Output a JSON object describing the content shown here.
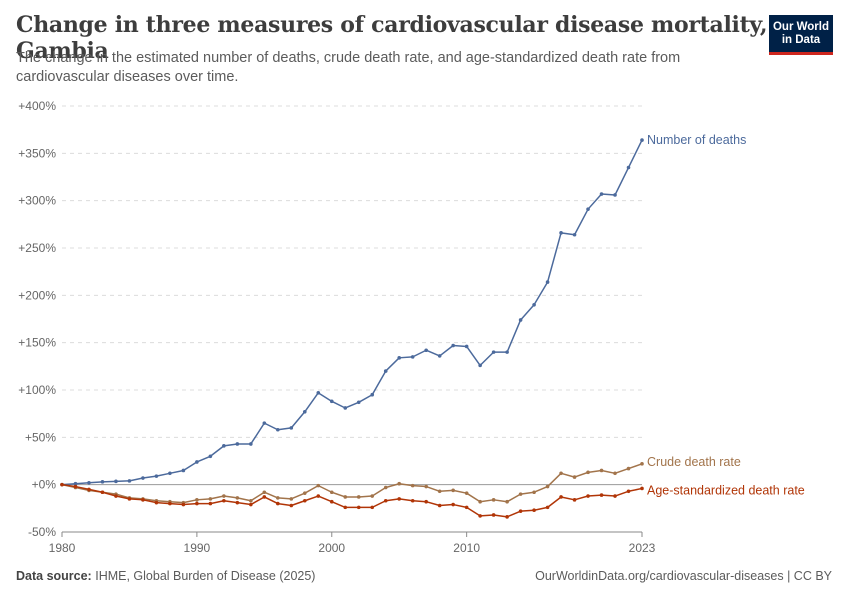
{
  "header": {
    "title": "Change in three measures of cardiovascular disease mortality, Gambia",
    "subtitle": "The change in the estimated number of deaths, crude death rate, and age-standardized death rate from cardiovascular diseases over time."
  },
  "logo": {
    "line1": "Our World",
    "line2": "in Data",
    "bg_color": "#002147",
    "accent_color": "#ce261e"
  },
  "footer": {
    "source_label": "Data source:",
    "source_text": "IHME, Global Burden of Disease (2025)",
    "url_license": "OurWorldinData.org/cardiovascular-diseases | CC BY"
  },
  "chart_data": {
    "type": "line",
    "title": "Change in three measures of cardiovascular disease mortality, Gambia",
    "x": [
      1980,
      1981,
      1982,
      1983,
      1984,
      1985,
      1986,
      1987,
      1988,
      1989,
      1990,
      1991,
      1992,
      1993,
      1994,
      1995,
      1996,
      1997,
      1998,
      1999,
      2000,
      2001,
      2002,
      2003,
      2004,
      2005,
      2006,
      2007,
      2008,
      2009,
      2010,
      2011,
      2012,
      2013,
      2014,
      2015,
      2016,
      2017,
      2018,
      2019,
      2020,
      2021,
      2022,
      2023
    ],
    "x_ticks": [
      1980,
      1990,
      2000,
      2010,
      2023
    ],
    "y_ticks": [
      -50,
      0,
      50,
      100,
      150,
      200,
      250,
      300,
      350,
      400
    ],
    "y_tick_labels": [
      "-50%",
      "+0%",
      "+50%",
      "+100%",
      "+150%",
      "+200%",
      "+250%",
      "+300%",
      "+350%",
      "+400%"
    ],
    "ylim": [
      -50,
      400
    ],
    "xlim": [
      1980,
      2023
    ],
    "grid": "horizontal dashed",
    "legend": "line-end labels",
    "series": [
      {
        "name": "Number of deaths",
        "color": "#4c6a9c",
        "values": [
          0,
          1,
          2,
          3,
          3.5,
          4,
          7,
          9,
          12,
          15,
          24,
          30,
          41,
          43,
          43,
          65,
          58,
          60,
          77,
          97,
          88,
          81,
          87,
          95,
          120,
          134,
          135,
          142,
          136,
          147,
          146,
          126,
          140,
          140,
          174,
          190,
          214,
          266,
          264,
          291,
          307,
          306,
          335,
          364
        ]
      },
      {
        "name": "Crude death rate",
        "color": "#a2744b",
        "values": [
          0,
          -3,
          -6,
          -8,
          -10,
          -14,
          -15,
          -17,
          -18,
          -19,
          -16,
          -15,
          -12,
          -14,
          -17,
          -8,
          -14,
          -15,
          -9,
          -1,
          -8,
          -13,
          -13,
          -12,
          -3,
          1,
          -1,
          -2,
          -7,
          -6,
          -9,
          -18,
          -16,
          -18,
          -10,
          -8,
          -2,
          12,
          8,
          13,
          15,
          12,
          17,
          22
        ]
      },
      {
        "name": "Age-standardized death rate",
        "color": "#b13507",
        "values": [
          0,
          -2,
          -5,
          -8,
          -12,
          -15,
          -16,
          -19,
          -20,
          -21,
          -20,
          -20,
          -17,
          -19,
          -21,
          -13,
          -20,
          -22,
          -17,
          -12,
          -18,
          -24,
          -24,
          -24,
          -17,
          -15,
          -17,
          -18,
          -22,
          -21,
          -24,
          -33,
          -32,
          -34,
          -28,
          -27,
          -24,
          -13,
          -16,
          -12,
          -11,
          -12,
          -7,
          -4
        ]
      }
    ]
  }
}
